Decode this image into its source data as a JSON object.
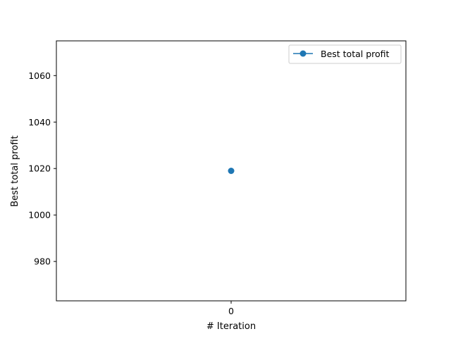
{
  "chart_data": {
    "type": "line",
    "title": "",
    "xlabel": "# Iteration",
    "ylabel": "Best total profit",
    "x_ticks": [
      0
    ],
    "y_ticks": [
      980,
      1000,
      1020,
      1040,
      1060
    ],
    "xlim": [
      -0.055,
      0.055
    ],
    "ylim": [
      963.05,
      1074.95
    ],
    "grid": false,
    "legend_position": "top-right",
    "series": [
      {
        "name": "Best total profit",
        "x": [
          0
        ],
        "values": [
          1019
        ],
        "color": "#1f77b4",
        "marker": "circle"
      }
    ]
  }
}
